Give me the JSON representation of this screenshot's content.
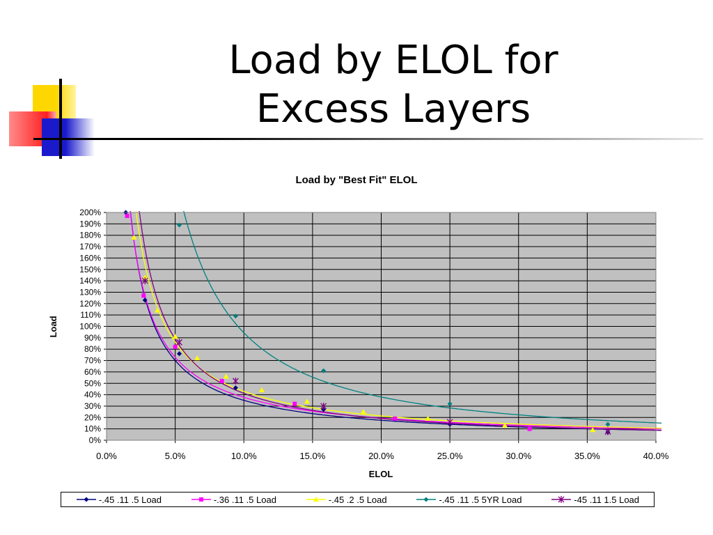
{
  "slide": {
    "title_line1": "Load by ELOL for",
    "title_line2": "Excess Layers"
  },
  "chart_data": {
    "type": "line",
    "title": "Load by \"Best Fit\" ELOL",
    "xlabel": "ELOL",
    "ylabel": "Load",
    "xlim": [
      0,
      0.4
    ],
    "ylim": [
      0,
      2.0
    ],
    "x_ticks": [
      "0.0%",
      "5.0%",
      "10.0%",
      "15.0%",
      "20.0%",
      "25.0%",
      "30.0%",
      "35.0%",
      "40.0%"
    ],
    "y_ticks": [
      "0%",
      "10%",
      "20%",
      "30%",
      "40%",
      "50%",
      "60%",
      "70%",
      "80%",
      "90%",
      "100%",
      "110%",
      "120%",
      "130%",
      "140%",
      "150%",
      "160%",
      "170%",
      "180%",
      "190%",
      "200%"
    ],
    "grid": true,
    "legend_position": "bottom",
    "series": [
      {
        "name": "-.45 .11 .5 Load",
        "color": "#000080",
        "marker": "diamond",
        "points": [
          [
            0.014,
            2.03
          ],
          [
            0.028,
            1.23
          ],
          [
            0.053,
            0.76
          ],
          [
            0.094,
            0.46
          ],
          [
            0.158,
            0.27
          ],
          [
            0.25,
            0.14
          ],
          [
            0.365,
            0.07
          ]
        ]
      },
      {
        "name": "-.36 .11 .5 Load",
        "color": "#ff00ff",
        "marker": "square",
        "points": [
          [
            0.015,
            1.97
          ],
          [
            0.027,
            1.27
          ],
          [
            0.05,
            0.82
          ],
          [
            0.084,
            0.52
          ],
          [
            0.137,
            0.32
          ],
          [
            0.21,
            0.19
          ],
          [
            0.308,
            0.1
          ]
        ]
      },
      {
        "name": "-.45 .2 .5 Load",
        "color": "#ffff00",
        "marker": "triangle",
        "points": [
          [
            0.02,
            1.78
          ],
          [
            0.028,
            1.43
          ],
          [
            0.037,
            1.14
          ],
          [
            0.05,
            0.91
          ],
          [
            0.066,
            0.72
          ],
          [
            0.087,
            0.56
          ],
          [
            0.113,
            0.44
          ],
          [
            0.146,
            0.34
          ],
          [
            0.187,
            0.25
          ],
          [
            0.234,
            0.19
          ],
          [
            0.29,
            0.13
          ],
          [
            0.354,
            0.09
          ]
        ]
      },
      {
        "name": "-.45 .11 .5 5YR Load",
        "color": "#008080",
        "marker": "diamond",
        "points": [
          [
            0.053,
            1.89
          ],
          [
            0.094,
            1.09
          ],
          [
            0.158,
            0.61
          ],
          [
            0.25,
            0.32
          ],
          [
            0.365,
            0.14
          ]
        ]
      },
      {
        "name": "-45 .11 1.5 Load",
        "color": "#800080",
        "marker": "star",
        "points": [
          [
            0.028,
            1.4
          ],
          [
            0.053,
            0.86
          ],
          [
            0.094,
            0.52
          ],
          [
            0.158,
            0.3
          ],
          [
            0.25,
            0.16
          ],
          [
            0.365,
            0.075
          ]
        ]
      }
    ]
  }
}
